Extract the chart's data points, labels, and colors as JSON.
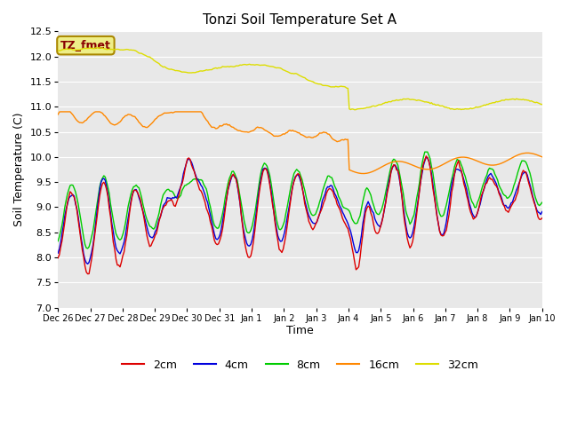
{
  "title": "Tonzi Soil Temperature Set A",
  "xlabel": "Time",
  "ylabel": "Soil Temperature (C)",
  "ylim": [
    7.0,
    12.5
  ],
  "yticks": [
    7.0,
    7.5,
    8.0,
    8.5,
    9.0,
    9.5,
    10.0,
    10.5,
    11.0,
    11.5,
    12.0,
    12.5
  ],
  "x_labels": [
    "Dec 26",
    "Dec 27",
    "Dec 28",
    "Dec 29",
    "Dec 30",
    "Dec 31",
    "Jan 1",
    "Jan 2",
    "Jan 3",
    "Jan 4",
    "Jan 5",
    "Jan 6",
    "Jan 7",
    "Jan 8",
    "Jan 9",
    "Jan 10"
  ],
  "colors": {
    "2cm": "#dd0000",
    "4cm": "#0000dd",
    "8cm": "#00cc00",
    "16cm": "#ff8800",
    "32cm": "#dddd00"
  },
  "legend_label": "TZ_fmet",
  "legend_box_facecolor": "#eeee88",
  "legend_box_edgecolor": "#aa8800",
  "legend_text_color": "#880000",
  "plot_bg_color": "#e8e8e8",
  "fig_bg_color": "#ffffff",
  "grid_color": "#ffffff",
  "figsize": [
    6.4,
    4.8
  ],
  "dpi": 100
}
